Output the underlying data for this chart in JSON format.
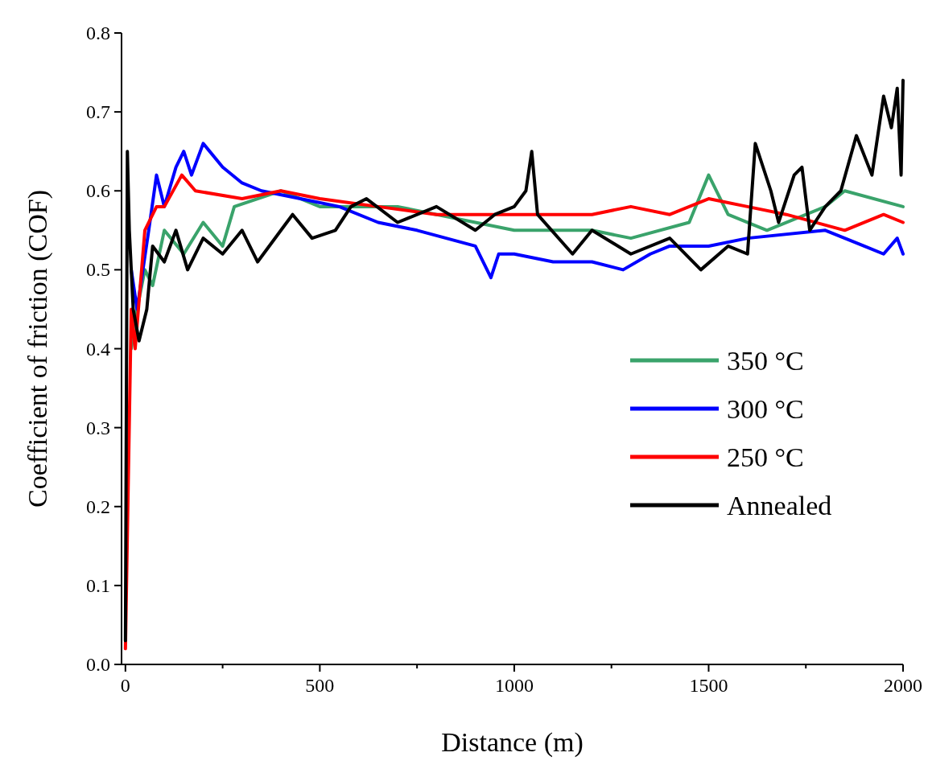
{
  "chart_data": {
    "type": "line",
    "xlabel": "Distance (m)",
    "ylabel": "Coefficient of friction (COF)",
    "xlim": [
      -10,
      2000
    ],
    "ylim": [
      0,
      0.8
    ],
    "xticks": [
      0,
      {
        "value": 250,
        "label": null
      },
      500,
      {
        "value": 750,
        "label": null
      },
      1000,
      {
        "value": 1250,
        "label": null
      },
      1500,
      {
        "value": 1750,
        "label": null
      },
      2000
    ],
    "yticks": [
      {
        "value": 0,
        "label": "0.0"
      },
      0.1,
      0.2,
      0.3,
      0.4,
      0.5,
      0.6,
      0.7,
      0.8
    ],
    "grid": false,
    "legend": "right",
    "line_style": "solid",
    "marker": "none",
    "series": [
      {
        "name": "350 °C",
        "color": "#3aa36b",
        "x": [
          15,
          30,
          50,
          70,
          100,
          150,
          200,
          250,
          280,
          400,
          500,
          700,
          900,
          1000,
          1200,
          1300,
          1450,
          1500,
          1550,
          1650,
          1800,
          1850,
          2000
        ],
        "values": [
          0.4,
          0.45,
          0.5,
          0.48,
          0.55,
          0.52,
          0.56,
          0.53,
          0.58,
          0.6,
          0.58,
          0.58,
          0.56,
          0.55,
          0.55,
          0.54,
          0.56,
          0.62,
          0.57,
          0.55,
          0.58,
          0.6,
          0.58
        ]
      },
      {
        "name": "300 °C",
        "color": "#0000ff",
        "x": [
          15,
          30,
          60,
          80,
          100,
          130,
          150,
          170,
          200,
          250,
          300,
          350,
          450,
          550,
          650,
          750,
          900,
          940,
          960,
          1000,
          1100,
          1200,
          1280,
          1350,
          1400,
          1500,
          1600,
          1800,
          1900,
          1950,
          1985,
          2000
        ],
        "values": [
          0.5,
          0.45,
          0.55,
          0.62,
          0.58,
          0.63,
          0.65,
          0.62,
          0.66,
          0.63,
          0.61,
          0.6,
          0.59,
          0.58,
          0.56,
          0.55,
          0.53,
          0.49,
          0.52,
          0.52,
          0.51,
          0.51,
          0.5,
          0.52,
          0.53,
          0.53,
          0.54,
          0.55,
          0.53,
          0.52,
          0.54,
          0.52
        ]
      },
      {
        "name": "250 °C",
        "color": "#ff0000",
        "x": [
          0,
          15,
          25,
          50,
          80,
          100,
          145,
          180,
          300,
          400,
          500,
          650,
          800,
          1000,
          1200,
          1300,
          1400,
          1500,
          1600,
          1700,
          1850,
          1950,
          2000
        ],
        "values": [
          0.02,
          0.45,
          0.4,
          0.55,
          0.58,
          0.58,
          0.62,
          0.6,
          0.59,
          0.6,
          0.59,
          0.58,
          0.57,
          0.57,
          0.57,
          0.58,
          0.57,
          0.59,
          0.58,
          0.57,
          0.55,
          0.57,
          0.56
        ]
      },
      {
        "name": "Annealed",
        "color": "#000000",
        "x": [
          0,
          5,
          10,
          20,
          35,
          55,
          70,
          100,
          130,
          160,
          200,
          250,
          300,
          340,
          400,
          430,
          480,
          540,
          580,
          620,
          700,
          800,
          900,
          950,
          1000,
          1030,
          1045,
          1060,
          1150,
          1200,
          1300,
          1400,
          1480,
          1550,
          1600,
          1620,
          1660,
          1680,
          1720,
          1740,
          1760,
          1800,
          1840,
          1880,
          1920,
          1950,
          1970,
          1985,
          1995,
          2000
        ],
        "values": [
          0.03,
          0.65,
          0.55,
          0.45,
          0.41,
          0.45,
          0.53,
          0.51,
          0.55,
          0.5,
          0.54,
          0.52,
          0.55,
          0.51,
          0.55,
          0.57,
          0.54,
          0.55,
          0.58,
          0.59,
          0.56,
          0.58,
          0.55,
          0.57,
          0.58,
          0.6,
          0.65,
          0.57,
          0.52,
          0.55,
          0.52,
          0.54,
          0.5,
          0.53,
          0.52,
          0.66,
          0.6,
          0.56,
          0.62,
          0.63,
          0.55,
          0.58,
          0.6,
          0.67,
          0.62,
          0.72,
          0.68,
          0.73,
          0.62,
          0.74
        ]
      }
    ]
  }
}
